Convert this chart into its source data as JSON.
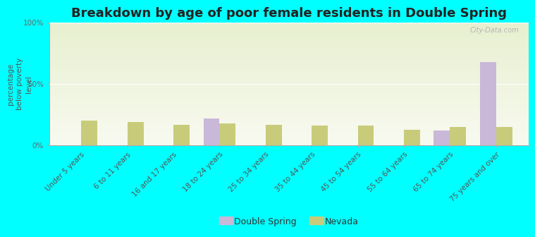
{
  "title": "Breakdown by age of poor female residents in Double Spring",
  "ylabel": "percentage\nbelow poverty\nlevel",
  "categories": [
    "Under 5 years",
    "6 to 11 years",
    "16 and 17 years",
    "18 to 24 years",
    "25 to 34 years",
    "35 to 44 years",
    "45 to 54 years",
    "55 to 64 years",
    "65 to 74 years",
    "75 years and over"
  ],
  "double_spring": [
    0,
    0,
    0,
    22,
    0,
    0,
    0,
    0,
    12,
    68
  ],
  "nevada": [
    20,
    19,
    17,
    18,
    17,
    16,
    16,
    13,
    15,
    15
  ],
  "ds_color": "#c9b8d8",
  "nv_color": "#c8cc7a",
  "background_color": "#00ffff",
  "plot_bg_top": "#e8f0d0",
  "plot_bg_bottom": "#f8faf0",
  "ylim": [
    0,
    100
  ],
  "yticks": [
    0,
    50,
    100
  ],
  "ytick_labels": [
    "0%",
    "50%",
    "100%"
  ],
  "bar_width": 0.35,
  "title_fontsize": 13,
  "tick_fontsize": 7.5,
  "ylabel_fontsize": 7.5,
  "watermark": "City-Data.com"
}
